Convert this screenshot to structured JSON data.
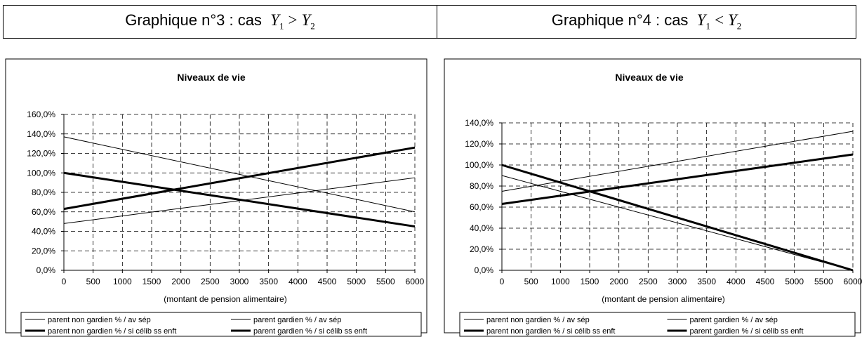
{
  "headers": [
    {
      "text": "Graphique n°3 : cas",
      "y_left": "Y",
      "sub_left": "1",
      "op": ">",
      "y_right": "Y",
      "sub_right": "2"
    },
    {
      "text": "Graphique n°4 : cas",
      "y_left": "Y",
      "sub_left": "1",
      "op": "<",
      "y_right": "Y",
      "sub_right": "2"
    }
  ],
  "chart_data": [
    {
      "type": "line",
      "title": "Niveaux de vie",
      "xlabel": "(montant de pension alimentaire)",
      "ylabel": "",
      "x_ticks": [
        0,
        500,
        1000,
        1500,
        2000,
        2500,
        3000,
        3500,
        4000,
        4500,
        5000,
        5500,
        6000
      ],
      "y_ticks": [
        "0,0%",
        "20,0%",
        "40,0%",
        "60,0%",
        "80,0%",
        "100,0%",
        "120,0%",
        "140,0%",
        "160,0%"
      ],
      "xlim": [
        0,
        6000
      ],
      "ylim": [
        0,
        160
      ],
      "grid": true,
      "legend_position": "bottom",
      "x": [
        0,
        6000
      ],
      "series": [
        {
          "name": "parent non gardien % / av sép",
          "values": [
            137,
            60
          ],
          "weight": "thin"
        },
        {
          "name": "parent gardien % / av sép",
          "values": [
            48,
            95
          ],
          "weight": "thin"
        },
        {
          "name": "parent non gardien % / si célib ss enft",
          "values": [
            100,
            45
          ],
          "weight": "thick"
        },
        {
          "name": "parent gardien % / si célib ss enft",
          "values": [
            63,
            126
          ],
          "weight": "thick"
        }
      ]
    },
    {
      "type": "line",
      "title": "Niveaux de vie",
      "xlabel": "(montant de pension alimentaire)",
      "ylabel": "",
      "x_ticks": [
        0,
        500,
        1000,
        1500,
        2000,
        2500,
        3000,
        3500,
        4000,
        4500,
        5000,
        5500,
        6000
      ],
      "y_ticks": [
        "0,0%",
        "20,0%",
        "40,0%",
        "60,0%",
        "80,0%",
        "100,0%",
        "120,0%",
        "140,0%"
      ],
      "xlim": [
        0,
        6000
      ],
      "ylim": [
        0,
        140
      ],
      "grid": true,
      "legend_position": "bottom",
      "x": [
        0,
        6000
      ],
      "series": [
        {
          "name": "parent non gardien % / av sép",
          "values": [
            90,
            0
          ],
          "weight": "thin"
        },
        {
          "name": "parent gardien % / av sép",
          "values": [
            75,
            132
          ],
          "weight": "thin"
        },
        {
          "name": "parent non gardien % / si célib ss enft",
          "values": [
            100,
            0
          ],
          "weight": "thick"
        },
        {
          "name": "parent gardien % / si célib ss enft",
          "values": [
            63,
            110
          ],
          "weight": "thick"
        }
      ]
    }
  ]
}
